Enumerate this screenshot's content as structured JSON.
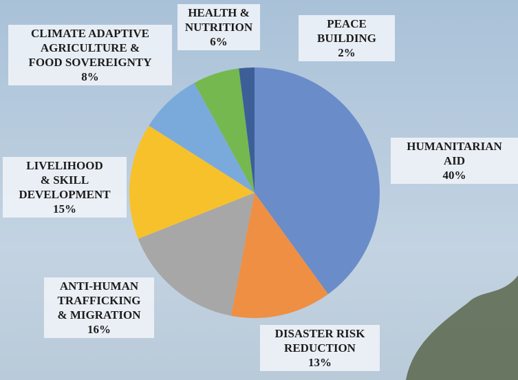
{
  "chart_data": {
    "type": "pie",
    "categories": [
      "HUMANITARIAN\nAID",
      "DISASTER RISK\nREDUCTION",
      "ANTI-HUMAN\nTRAFFICKING\n& MIGRATION",
      "LIVELIHOOD\n& SKILL\nDEVELOPMENT",
      "CLIMATE ADAPTIVE\nAGRICULTURE &\nFOOD SOVEREIGNTY",
      "HEALTH &\nNUTRITION",
      "PEACE\nBUILDING"
    ],
    "values": [
      40,
      13,
      16,
      15,
      8,
      6,
      2
    ],
    "value_labels": [
      "40%",
      "13%",
      "16%",
      "15%",
      "8%",
      "6%",
      "2%"
    ],
    "colors": [
      "#6a8cc9",
      "#ee8f44",
      "#a7a7a7",
      "#f7c12c",
      "#7aaadb",
      "#75b84f",
      "#3c5f97"
    ]
  }
}
